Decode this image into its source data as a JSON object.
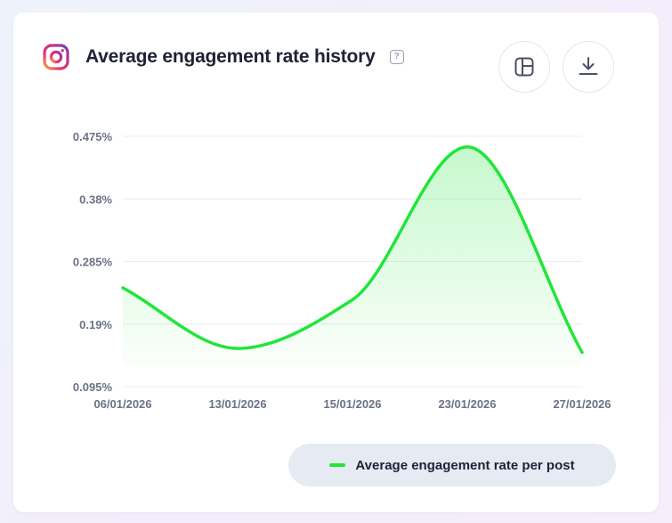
{
  "header": {
    "title": "Average engagement rate history",
    "help_icon": "question-icon",
    "help_text": "?",
    "platform_icon": "instagram-icon"
  },
  "toolbar": {
    "layout_icon": "layout-icon",
    "download_icon": "download-icon"
  },
  "colors": {
    "series": "#21e53a",
    "grid": "#e9ecf2",
    "axis_text": "#6b7285",
    "legend_bg": "#e6ebf3"
  },
  "chart_data": {
    "type": "area",
    "title": "Average engagement rate history",
    "xlabel": "",
    "ylabel": "",
    "grid": true,
    "legend_position": "bottom-right",
    "categories": [
      "06/01/2026",
      "13/01/2026",
      "15/01/2026",
      "23/01/2026",
      "27/01/2026"
    ],
    "y_ticks": [
      "0.095%",
      "0.19%",
      "0.285%",
      "0.38%",
      "0.475%"
    ],
    "y_tick_values": [
      0.095,
      0.19,
      0.285,
      0.38,
      0.475
    ],
    "ylim": [
      0.095,
      0.475
    ],
    "series": [
      {
        "name": "Average engagement rate per post",
        "values": [
          0.245,
          0.153,
          0.227,
          0.459,
          0.147
        ]
      }
    ]
  }
}
